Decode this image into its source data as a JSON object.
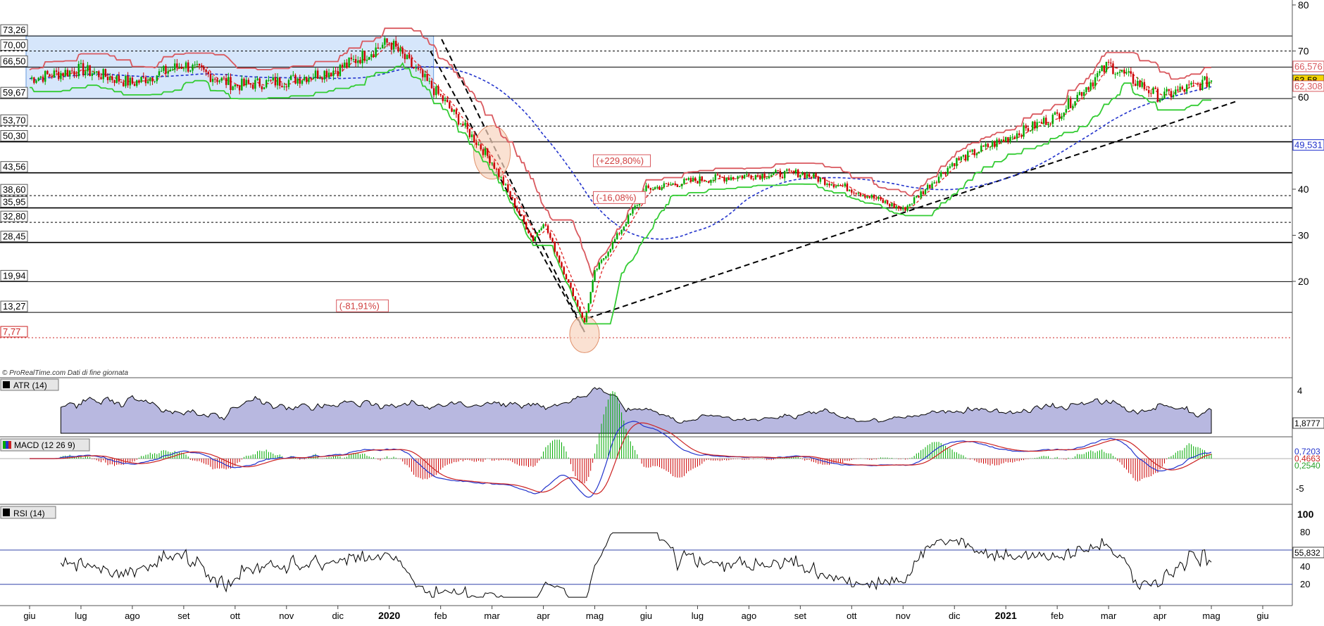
{
  "watermark": {
    "text": "© ProRealTime.com  Dati di fine giornata"
  },
  "panels": {
    "atr": {
      "label": "ATR (14)",
      "value_label": "1,8777",
      "ticks": [
        "4"
      ]
    },
    "macd": {
      "label": "MACD (12 26 9)",
      "value_labels": [
        "0,7203",
        "0,4663",
        "0,2540"
      ],
      "ticks": [
        "-5"
      ]
    },
    "rsi": {
      "label": "RSI (14)",
      "value_label": "55,832",
      "ticks": [
        "100",
        "80",
        "40",
        "20"
      ]
    }
  },
  "colors": {
    "price_up": "#00aa00",
    "price_down": "#cc0000",
    "range_box": "#d6e6fb",
    "supertrend_red": "#d9585e",
    "supertrend_green": "#33cc33",
    "ma_red": "#e03030",
    "ma_blue": "#2233cc",
    "atr_fill": "#b8b8e0",
    "circle_fill": "#f8d4bf",
    "last_price_bg": "#f3d400"
  },
  "chart_data": {
    "type": "line",
    "title": "",
    "xlabel": "",
    "ylabel": "",
    "ylim": [
      5,
      80
    ],
    "y_ticks": [
      20,
      30,
      40,
      60,
      70,
      80
    ],
    "x_tick_labels": [
      "giu",
      "lug",
      "ago",
      "set",
      "ott",
      "nov",
      "dic",
      "2020",
      "feb",
      "mar",
      "apr",
      "mag",
      "giu",
      "lug",
      "ago",
      "set",
      "ott",
      "nov",
      "dic",
      "2021",
      "feb",
      "mar",
      "apr",
      "mag",
      "giu"
    ],
    "horizontal_levels": [
      {
        "value": 73.26,
        "label": "73,26",
        "style": "solid"
      },
      {
        "value": 70.0,
        "label": "70,00",
        "style": "dashed"
      },
      {
        "value": 66.5,
        "label": "66,50",
        "style": "solid"
      },
      {
        "value": 59.67,
        "label": "59,67",
        "style": "solid"
      },
      {
        "value": 53.7,
        "label": "53,70",
        "style": "dashed"
      },
      {
        "value": 50.3,
        "label": "50,30",
        "style": "solid"
      },
      {
        "value": 43.56,
        "label": "43,56",
        "style": "solid"
      },
      {
        "value": 38.6,
        "label": "38,60",
        "style": "dashed"
      },
      {
        "value": 35.95,
        "label": "35,95",
        "style": "solid"
      },
      {
        "value": 32.8,
        "label": "32,80",
        "style": "dashed"
      },
      {
        "value": 28.45,
        "label": "28,45",
        "style": "solid"
      },
      {
        "value": 19.94,
        "label": "19,94",
        "style": "solid"
      },
      {
        "value": 13.27,
        "label": "13,27",
        "style": "solid"
      },
      {
        "value": 7.77,
        "label": "7,77",
        "style": "dotted-red"
      }
    ],
    "right_value_labels": [
      {
        "value": 66.576,
        "label": "66,576"
      },
      {
        "value": 63.58,
        "label": "63,58"
      },
      {
        "value": 62.308,
        "label": "62,308"
      },
      {
        "value": 49.531,
        "label": "49,531"
      }
    ],
    "annotations": [
      {
        "text": "(-81,91%)",
        "x": "2020-01",
        "y": 14.0
      },
      {
        "text": "(+229,80%)",
        "x": "2020-06",
        "y": 45.5
      },
      {
        "text": "(-16,08%)",
        "x": "2020-06",
        "y": 37.5
      }
    ],
    "series": [
      {
        "values": [
          {
            "x": "2019-06",
            "y": 64.0
          },
          {
            "x": "2019-07",
            "y": 66.0
          },
          {
            "x": "2019-08",
            "y": 63.0
          },
          {
            "x": "2019-09",
            "y": 67.0
          },
          {
            "x": "2019-10",
            "y": 62.5
          },
          {
            "x": "2019-11",
            "y": 63.5
          },
          {
            "x": "2019-12",
            "y": 66.0
          },
          {
            "x": "2020-01",
            "y": 72.0
          },
          {
            "x": "2020-02",
            "y": 60.0
          },
          {
            "x": "2020-03",
            "y": 46.0
          },
          {
            "x": "2020-03-25",
            "y": 29.0
          },
          {
            "x": "2020-04",
            "y": 33.0
          },
          {
            "x": "2020-04-25",
            "y": 11.0
          },
          {
            "x": "2020-05",
            "y": 22.0
          },
          {
            "x": "2020-06",
            "y": 40.0
          },
          {
            "x": "2020-07",
            "y": 42.0
          },
          {
            "x": "2020-08",
            "y": 43.0
          },
          {
            "x": "2020-09",
            "y": 43.5
          },
          {
            "x": "2020-10",
            "y": 40.0
          },
          {
            "x": "2020-11",
            "y": 35.5
          },
          {
            "x": "2020-12",
            "y": 46.0
          },
          {
            "x": "2021-01",
            "y": 51.0
          },
          {
            "x": "2021-02",
            "y": 56.0
          },
          {
            "x": "2021-03",
            "y": 67.0
          },
          {
            "x": "2021-04",
            "y": 60.0
          },
          {
            "x": "2021-05",
            "y": 63.58
          }
        ]
      }
    ]
  }
}
